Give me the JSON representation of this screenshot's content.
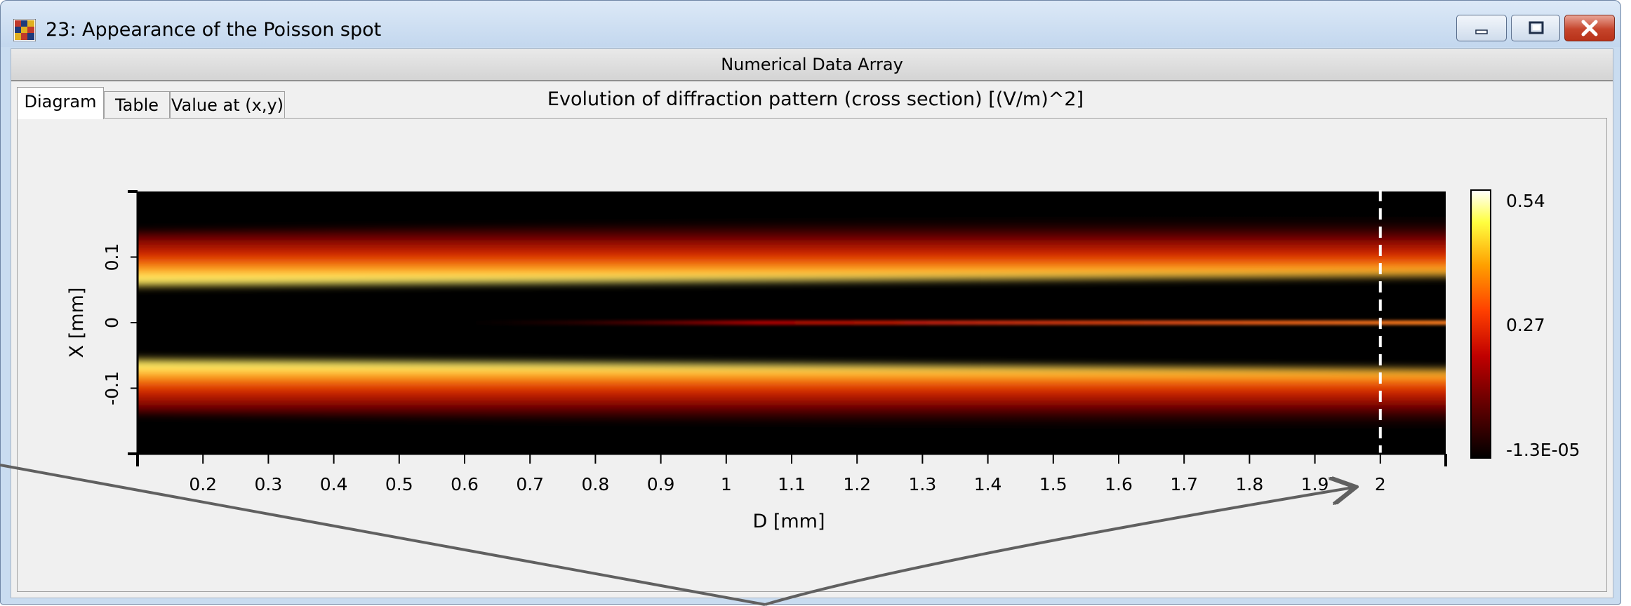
{
  "window": {
    "title": "23: Appearance of the Poisson spot",
    "minimize_label": "minimize",
    "maximize_label": "maximize",
    "close_label": "close"
  },
  "panel": {
    "header": "Numerical Data Array"
  },
  "tabs": [
    {
      "label": "Diagram",
      "active": true
    },
    {
      "label": "Table",
      "active": false
    },
    {
      "label": "Value at (x,y)",
      "active": false
    }
  ],
  "chart_data": {
    "type": "heatmap",
    "title": "Evolution of diffraction pattern (cross section)  [(V/m)^2]",
    "xlabel": "D [mm]",
    "ylabel": "X [mm]",
    "xlim": [
      0.1,
      2.1
    ],
    "ylim": [
      -0.2,
      0.2
    ],
    "x_ticks": [
      "0.2",
      "0.3",
      "0.4",
      "0.5",
      "0.6",
      "0.7",
      "0.8",
      "0.9",
      "1",
      "1.1",
      "1.2",
      "1.3",
      "1.4",
      "1.5",
      "1.6",
      "1.7",
      "1.8",
      "1.9",
      "2"
    ],
    "x_tick_values": [
      0.2,
      0.3,
      0.4,
      0.5,
      0.6,
      0.7,
      0.8,
      0.9,
      1.0,
      1.1,
      1.2,
      1.3,
      1.4,
      1.5,
      1.6,
      1.7,
      1.8,
      1.9,
      2.0
    ],
    "y_ticks": [
      "0.1",
      "0",
      "-0.1"
    ],
    "y_tick_values": [
      0.1,
      0,
      -0.1
    ],
    "colorbar": {
      "max_label": "0.54",
      "mid_label": "0.27",
      "min_label": "-1.3E-05",
      "max": 0.54,
      "min": -1.3e-05
    },
    "colormap": [
      "#000000",
      "#5a0000",
      "#c00000",
      "#ff4000",
      "#ffa000",
      "#ffff40",
      "#ffffff"
    ],
    "bands": [
      {
        "name": "upper edge band",
        "x": [
          0.1,
          2.1
        ],
        "center_y": [
          0.065,
          0.08
        ]
      },
      {
        "name": "lower edge band",
        "x": [
          0.1,
          2.1
        ],
        "center_y": [
          -0.065,
          -0.08
        ]
      },
      {
        "name": "Poisson spot",
        "x": [
          0.6,
          2.1
        ],
        "center_y": [
          0,
          0
        ]
      }
    ],
    "marker": {
      "x": 2.0,
      "style": "dashed",
      "color": "#ffffff"
    },
    "annotation_arrow_color": "#606060"
  }
}
